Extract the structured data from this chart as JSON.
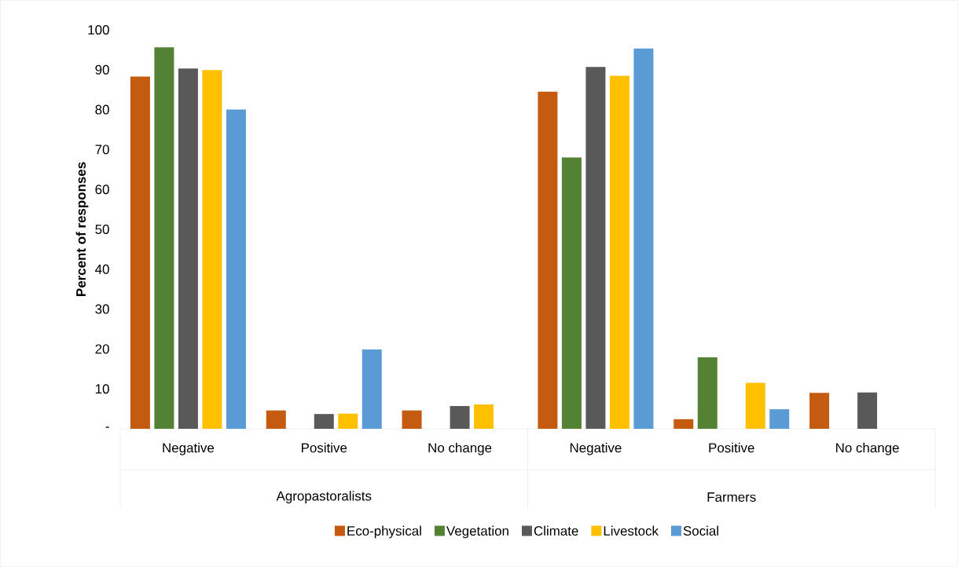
{
  "chart_data": {
    "type": "bar",
    "ylabel": "Percent of responses",
    "categories": [
      "Negative",
      "Positive",
      "No change",
      "Negative",
      "Positive",
      "No change"
    ],
    "annotations": [
      "Agropastoralists",
      "Farmers"
    ],
    "series": [
      {
        "name": "Eco-physical",
        "color": "#c55a11",
        "values": [
          88.3,
          4.6,
          4.6,
          84.5,
          2.4,
          9.0
        ]
      },
      {
        "name": "Vegetation",
        "color": "#548235",
        "values": [
          95.6,
          null,
          null,
          68.0,
          17.9,
          null
        ]
      },
      {
        "name": "Climate",
        "color": "#595959",
        "values": [
          90.3,
          3.7,
          5.7,
          90.7,
          null,
          9.1
        ]
      },
      {
        "name": "Livestock",
        "color": "#ffc000",
        "values": [
          89.9,
          3.8,
          6.1,
          88.5,
          11.5,
          null
        ]
      },
      {
        "name": "Social",
        "color": "#5b9bd5",
        "values": [
          80.0,
          19.9,
          null,
          95.3,
          4.9,
          null
        ]
      }
    ],
    "ylim": [
      0,
      100
    ],
    "yticks": [
      {
        "value": 0,
        "label": "-"
      },
      10,
      20,
      30,
      40,
      50,
      60,
      70,
      80,
      90,
      100
    ],
    "grid": false,
    "legend": "bottom"
  }
}
